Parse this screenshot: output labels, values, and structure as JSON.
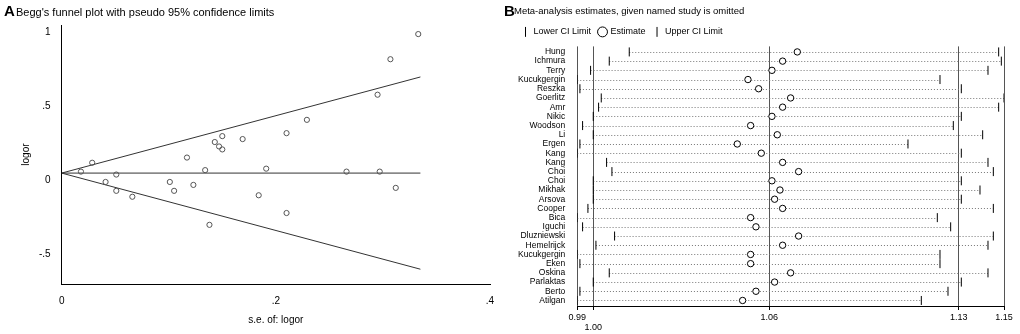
{
  "chart_data": [
    {
      "type": "scatter",
      "panel_label": "A",
      "title": "Begg's funnel plot with pseudo 95% confidence limits",
      "x_label": "s.e. of: logor",
      "y_label": "logor",
      "xlim": [
        0,
        0.4
      ],
      "xticks": [
        0,
        {
          "value": 0.2,
          "label": ".2"
        },
        {
          "value": 0.4,
          "label": ".4"
        }
      ],
      "ylim": [
        -0.7,
        1.05
      ],
      "yticks": [
        {
          "value": -0.5,
          "label": "-.5"
        },
        0,
        {
          "value": 0.5,
          "label": ".5"
        },
        1
      ],
      "grid": false,
      "series": [
        {
          "type": "scatter",
          "marker": "circle",
          "color": "#555555",
          "x": [
            0.0285,
            0.018,
            0.041,
            0.051,
            0.051,
            0.066,
            0.101,
            0.105,
            0.117,
            0.123,
            0.134,
            0.138,
            0.143,
            0.147,
            0.15,
            0.15,
            0.169,
            0.184,
            0.191,
            0.21,
            0.21,
            0.229,
            0.266,
            0.295,
            0.297,
            0.307,
            0.312,
            0.333
          ],
          "values": [
            0.12,
            0.06,
            -0.01,
            0.04,
            -0.07,
            -0.11,
            -0.01,
            -0.07,
            0.155,
            -0.03,
            0.07,
            -0.3,
            0.26,
            0.23,
            0.3,
            0.21,
            0.28,
            -0.1,
            0.08,
            0.32,
            -0.22,
            0.41,
            0.06,
            0.58,
            0.06,
            0.82,
            -0.05,
            0.99
          ]
        },
        {
          "type": "line",
          "line_style": "solid",
          "color": "#333333",
          "x": [
            0,
            0.335
          ],
          "values": [
            0.05,
            0.7
          ]
        },
        {
          "type": "line",
          "line_style": "solid",
          "color": "#333333",
          "x": [
            0,
            0.335
          ],
          "values": [
            0.05,
            0.05
          ]
        },
        {
          "type": "line",
          "line_style": "solid",
          "color": "#333333",
          "x": [
            0,
            0.335
          ],
          "values": [
            0.05,
            -0.6
          ]
        }
      ]
    },
    {
      "type": "forest",
      "panel_label": "B",
      "title": "Meta-analysis estimates, given named study is omitted",
      "orientation": "horizontal",
      "legend": "top-left",
      "grid": true,
      "xlim": [
        0.99,
        1.15
      ],
      "xticks": [
        0.99,
        {
          "value": 0.996,
          "label": "1.00"
        },
        {
          "value": 1.062,
          "label": "1.06"
        },
        {
          "value": 1.133,
          "label": "1.13"
        },
        1.15
      ],
      "categories": [
        "Hung",
        "Ichmura",
        "Terry",
        "Kucukgergin",
        "Reszka",
        "Goerlitz",
        "Amr",
        "Nikic",
        "Woodson",
        "Li",
        "Ergen",
        "Kang",
        "Kang",
        "Choi",
        "Choi",
        "Mikhak",
        "Arsova",
        "Cooper",
        "Bica",
        "Iguchi",
        "Dluzniewski",
        "Hemelrijck",
        "Kucukgergin",
        "Eken",
        "Oskina",
        "Parlaktas",
        "Berto",
        "Atilgan"
      ],
      "series": [
        {
          "name": "Lower CI Limit",
          "marker": "line",
          "color": "#000000",
          "values": [
            1.0095,
            1.002,
            0.995,
            0.99,
            0.991,
            0.999,
            0.998,
            0.996,
            0.992,
            0.996,
            0.991,
            0.99,
            1.001,
            1.003,
            0.996,
            0.996,
            0.996,
            0.994,
            0.99,
            0.992,
            1.004,
            0.997,
            0.99,
            0.991,
            1.002,
            0.996,
            0.991,
            0.99
          ]
        },
        {
          "name": "Estimate",
          "marker": "circle",
          "color": "#000000",
          "values": [
            1.0725,
            1.067,
            1.063,
            1.054,
            1.058,
            1.07,
            1.067,
            1.063,
            1.055,
            1.065,
            1.05,
            1.059,
            1.067,
            1.073,
            1.063,
            1.066,
            1.064,
            1.067,
            1.055,
            1.057,
            1.073,
            1.067,
            1.055,
            1.055,
            1.07,
            1.064,
            1.057,
            1.052
          ]
        },
        {
          "name": "Upper CI Limit",
          "marker": "line",
          "color": "#000000",
          "values": [
            1.148,
            1.149,
            1.144,
            1.126,
            1.134,
            1.15,
            1.148,
            1.134,
            1.131,
            1.142,
            1.114,
            1.134,
            1.144,
            1.146,
            1.134,
            1.141,
            1.134,
            1.146,
            1.125,
            1.13,
            1.146,
            1.144,
            1.126,
            1.126,
            1.144,
            1.134,
            1.129,
            1.119
          ]
        }
      ]
    }
  ]
}
